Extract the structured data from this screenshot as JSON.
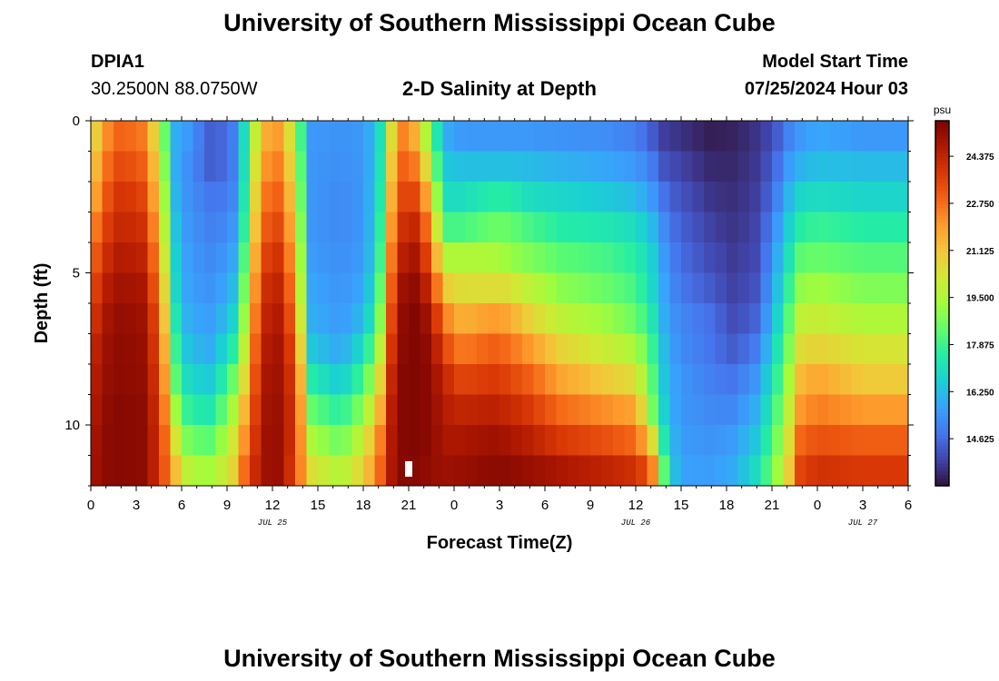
{
  "header": {
    "title": "University of Southern Mississippi Ocean Cube",
    "station": "DPIA1",
    "coords": "30.2500N  88.0750W",
    "plot_title": "2-D Salinity at Depth",
    "model_start_label": "Model Start Time",
    "model_start_value": "07/25/2024 Hour 03"
  },
  "footer": {
    "title": "University of Southern Mississippi Ocean Cube"
  },
  "colors": {
    "colormap": [
      "#30123b",
      "#4145ab",
      "#4675ed",
      "#39a2fc",
      "#1bcfd4",
      "#24eca6",
      "#61fc6c",
      "#a4fc3b",
      "#d1e834",
      "#f3c63a",
      "#fe9b2d",
      "#f36315",
      "#d93806",
      "#b11901",
      "#7a0403"
    ]
  },
  "chart_data": {
    "type": "heatmap",
    "title": "2-D Salinity at Depth",
    "xlabel": "Forecast Time(Z)",
    "ylabel": "Depth (ft)",
    "x_unit": "hours since 07/25 00Z",
    "xlim": [
      0,
      54
    ],
    "ylim": [
      0,
      12
    ],
    "y_inverted": true,
    "x_tick_values": [
      0,
      3,
      6,
      9,
      12,
      15,
      18,
      21,
      24,
      27,
      30,
      33,
      36,
      39,
      42,
      45,
      48,
      51,
      54
    ],
    "x_tick_labels": [
      "0",
      "3",
      "6",
      "9",
      "12",
      "15",
      "18",
      "21",
      "0",
      "3",
      "6",
      "9",
      "12",
      "15",
      "18",
      "21",
      "0",
      "3",
      "6"
    ],
    "y_tick_values": [
      0,
      5,
      10
    ],
    "y_tick_labels": [
      "0",
      "5",
      "10"
    ],
    "date_labels": [
      {
        "text": "JUL 25",
        "x": 12
      },
      {
        "text": "JUL 26",
        "x": 36
      },
      {
        "text": "JUL 27",
        "x": 51
      }
    ],
    "marker": {
      "x": 21,
      "y": 11.7
    },
    "colorbar": {
      "unit": "psu",
      "min": 13.0,
      "max": 25.6,
      "ticks": [
        14.625,
        16.25,
        17.875,
        19.5,
        21.125,
        22.75,
        24.375
      ],
      "tick_labels": [
        "14.625",
        "16.250",
        "17.875",
        "19.500",
        "21.125",
        "22.750",
        "24.375"
      ]
    },
    "depth_levels": [
      0.5,
      1.5,
      2.5,
      3.5,
      4.5,
      5.5,
      6.5,
      7.5,
      8.5,
      9.5,
      10.5,
      11.5
    ],
    "profiles": [
      {
        "t": 0,
        "v": [
          20.0,
          20.5,
          21.0,
          21.8,
          22.5,
          23.0,
          23.5,
          24.0,
          24.3,
          24.5,
          24.7,
          24.8
        ]
      },
      {
        "t": 0.8,
        "v": [
          22.0,
          22.5,
          23.0,
          23.5,
          24.0,
          24.5,
          24.8,
          25.0,
          25.1,
          25.2,
          25.3,
          25.3
        ]
      },
      {
        "t": 2,
        "v": [
          23.0,
          23.5,
          24.0,
          24.3,
          24.7,
          25.0,
          25.2,
          25.3,
          25.3,
          25.4,
          25.4,
          25.4
        ]
      },
      {
        "t": 3.5,
        "v": [
          22.5,
          23.0,
          23.5,
          24.0,
          24.4,
          24.8,
          25.0,
          25.1,
          25.2,
          25.3,
          25.3,
          25.3
        ]
      },
      {
        "t": 4.5,
        "v": [
          20.0,
          20.5,
          21.0,
          21.5,
          22.0,
          22.5,
          23.0,
          23.3,
          23.6,
          23.8,
          24.0,
          24.0
        ]
      },
      {
        "t": 5.0,
        "v": [
          18.0,
          18.3,
          18.6,
          19.0,
          19.5,
          20.0,
          20.5,
          21.0,
          21.5,
          22.0,
          22.5,
          22.8
        ]
      },
      {
        "t": 5.5,
        "v": [
          16.0,
          16.0,
          16.2,
          16.5,
          16.8,
          17.0,
          17.5,
          18.0,
          18.5,
          19.5,
          20.5,
          21.5
        ]
      },
      {
        "t": 6.5,
        "v": [
          15.5,
          15.3,
          15.3,
          15.4,
          15.5,
          15.6,
          15.8,
          16.2,
          16.8,
          17.5,
          18.5,
          19.5
        ]
      },
      {
        "t": 8,
        "v": [
          14.3,
          14.3,
          14.8,
          15.0,
          15.2,
          15.4,
          15.6,
          15.9,
          16.5,
          17.3,
          18.3,
          19.3
        ]
      },
      {
        "t": 9.3,
        "v": [
          14.8,
          14.8,
          15.0,
          15.3,
          15.6,
          16.0,
          16.5,
          17.3,
          18.3,
          19.2,
          20.0,
          20.5
        ]
      },
      {
        "t": 10.0,
        "v": [
          16.5,
          16.5,
          16.7,
          17.0,
          17.5,
          18.0,
          18.5,
          19.2,
          20.0,
          21.0,
          21.8,
          22.5
        ]
      },
      {
        "t": 10.5,
        "v": [
          18.5,
          18.8,
          19.2,
          19.5,
          20.0,
          20.5,
          21.0,
          21.5,
          22.0,
          22.5,
          23.0,
          23.5
        ]
      },
      {
        "t": 11.3,
        "v": [
          21.5,
          22.0,
          22.5,
          23.0,
          23.5,
          24.0,
          24.3,
          24.6,
          24.8,
          24.9,
          25.0,
          25.0
        ]
      },
      {
        "t": 12.5,
        "v": [
          22.0,
          22.5,
          23.0,
          23.5,
          24.0,
          24.4,
          24.7,
          24.9,
          25.0,
          25.1,
          25.1,
          25.1
        ]
      },
      {
        "t": 13.3,
        "v": [
          20.0,
          20.5,
          21.0,
          21.5,
          22.0,
          22.5,
          23.0,
          23.5,
          23.8,
          24.0,
          24.0,
          23.8
        ]
      },
      {
        "t": 14.0,
        "v": [
          17.5,
          17.8,
          18.0,
          18.3,
          18.6,
          19.0,
          19.5,
          20.2,
          21.0,
          21.5,
          21.8,
          22.0
        ]
      },
      {
        "t": 14.5,
        "v": [
          15.5,
          15.5,
          15.5,
          15.5,
          15.6,
          15.8,
          16.0,
          16.5,
          17.5,
          18.5,
          19.5,
          20.5
        ]
      },
      {
        "t": 16.5,
        "v": [
          15.4,
          15.3,
          15.2,
          15.2,
          15.3,
          15.4,
          15.5,
          15.8,
          16.5,
          17.5,
          18.5,
          19.5
        ]
      },
      {
        "t": 18.0,
        "v": [
          15.5,
          15.5,
          15.5,
          15.5,
          15.6,
          15.8,
          16.2,
          17.0,
          18.0,
          19.0,
          20.0,
          20.8
        ]
      },
      {
        "t": 19.0,
        "v": [
          16.5,
          16.5,
          16.6,
          16.8,
          17.0,
          17.5,
          18.0,
          19.0,
          20.0,
          21.0,
          22.0,
          22.5
        ]
      },
      {
        "t": 19.7,
        "v": [
          20.0,
          20.5,
          21.0,
          21.5,
          22.0,
          22.5,
          23.0,
          23.5,
          24.0,
          24.3,
          24.5,
          24.6
        ]
      },
      {
        "t": 20.5,
        "v": [
          22.5,
          23.0,
          23.5,
          24.0,
          24.5,
          25.0,
          25.2,
          25.3,
          25.4,
          25.4,
          25.4,
          25.4
        ]
      },
      {
        "t": 21.5,
        "v": [
          21.5,
          22.5,
          23.5,
          24.3,
          24.9,
          25.3,
          25.5,
          25.5,
          25.5,
          25.5,
          25.5,
          25.4
        ]
      },
      {
        "t": 22.5,
        "v": [
          18.5,
          19.5,
          21.0,
          22.0,
          23.0,
          24.0,
          24.8,
          25.2,
          25.3,
          25.3,
          25.3,
          25.2
        ]
      },
      {
        "t": 23.3,
        "v": [
          16.0,
          16.5,
          17.0,
          18.0,
          19.5,
          21.0,
          22.5,
          23.5,
          24.3,
          24.6,
          24.8,
          25.0
        ]
      },
      {
        "t": 24.5,
        "v": [
          15.5,
          16.3,
          17.0,
          18.0,
          19.5,
          20.5,
          21.5,
          22.5,
          23.5,
          24.3,
          24.8,
          25.1
        ]
      },
      {
        "t": 26.5,
        "v": [
          15.5,
          16.3,
          17.5,
          18.5,
          19.5,
          20.5,
          22.0,
          23.0,
          23.8,
          24.5,
          25.0,
          25.3
        ]
      },
      {
        "t": 27.5,
        "v": [
          15.5,
          16.3,
          17.5,
          18.5,
          19.2,
          20.5,
          21.8,
          22.8,
          23.6,
          24.3,
          24.9,
          25.3
        ]
      },
      {
        "t": 29.0,
        "v": [
          15.5,
          16.2,
          17.0,
          18.0,
          18.8,
          19.8,
          20.8,
          22.0,
          23.0,
          23.8,
          24.5,
          25.1
        ]
      },
      {
        "t": 31.0,
        "v": [
          15.4,
          16.0,
          16.8,
          17.5,
          18.3,
          19.0,
          19.8,
          20.8,
          21.8,
          22.8,
          23.8,
          24.8
        ]
      },
      {
        "t": 34.0,
        "v": [
          15.3,
          15.8,
          16.5,
          17.3,
          18.0,
          18.5,
          19.2,
          20.0,
          21.0,
          22.2,
          23.3,
          24.4
        ]
      },
      {
        "t": 36.0,
        "v": [
          15.0,
          15.5,
          16.2,
          17.0,
          17.5,
          18.0,
          18.5,
          19.5,
          20.5,
          21.8,
          22.8,
          24.0
        ]
      },
      {
        "t": 37.0,
        "v": [
          14.4,
          15.0,
          15.6,
          16.3,
          16.8,
          17.0,
          17.5,
          18.0,
          18.5,
          19.0,
          21.0,
          23.0
        ]
      },
      {
        "t": 37.8,
        "v": [
          13.8,
          14.2,
          14.8,
          15.3,
          15.6,
          15.8,
          16.0,
          16.3,
          16.5,
          16.8,
          17.5,
          18.5
        ]
      },
      {
        "t": 38.8,
        "v": [
          13.6,
          13.9,
          14.2,
          14.5,
          14.7,
          14.9,
          15.2,
          15.3,
          15.5,
          15.5,
          15.6,
          15.7
        ]
      },
      {
        "t": 41.0,
        "v": [
          13.2,
          13.4,
          13.6,
          13.8,
          14.0,
          14.3,
          14.7,
          14.8,
          15.0,
          15.2,
          15.4,
          15.6
        ]
      },
      {
        "t": 42.5,
        "v": [
          13.3,
          13.4,
          13.5,
          13.6,
          13.7,
          13.8,
          14.0,
          14.3,
          14.8,
          15.2,
          15.6,
          15.9
        ]
      },
      {
        "t": 44.0,
        "v": [
          13.6,
          13.7,
          13.8,
          13.9,
          14.0,
          14.2,
          14.5,
          15.0,
          15.5,
          16.0,
          16.5,
          17.0
        ]
      },
      {
        "t": 45.0,
        "v": [
          14.0,
          14.3,
          14.6,
          15.0,
          15.3,
          15.6,
          16.0,
          16.5,
          17.0,
          17.5,
          18.0,
          18.5
        ]
      },
      {
        "t": 46.0,
        "v": [
          15.0,
          15.5,
          16.0,
          16.5,
          17.0,
          17.5,
          18.0,
          18.5,
          19.0,
          19.5,
          20.0,
          20.5
        ]
      },
      {
        "t": 46.8,
        "v": [
          15.5,
          16.0,
          16.8,
          17.5,
          18.3,
          19.0,
          19.8,
          20.5,
          21.3,
          22.0,
          22.8,
          23.5
        ]
      },
      {
        "t": 48.0,
        "v": [
          15.8,
          16.3,
          17.0,
          17.8,
          18.5,
          19.3,
          20.0,
          20.8,
          21.8,
          22.5,
          23.3,
          24.0
        ]
      },
      {
        "t": 51.0,
        "v": [
          15.5,
          16.2,
          16.8,
          17.5,
          18.2,
          18.8,
          19.5,
          20.3,
          21.0,
          22.0,
          23.0,
          23.8
        ]
      },
      {
        "t": 54.0,
        "v": [
          15.5,
          16.2,
          16.8,
          17.5,
          18.2,
          18.8,
          19.5,
          20.3,
          21.0,
          22.0,
          23.0,
          23.8
        ]
      }
    ]
  }
}
